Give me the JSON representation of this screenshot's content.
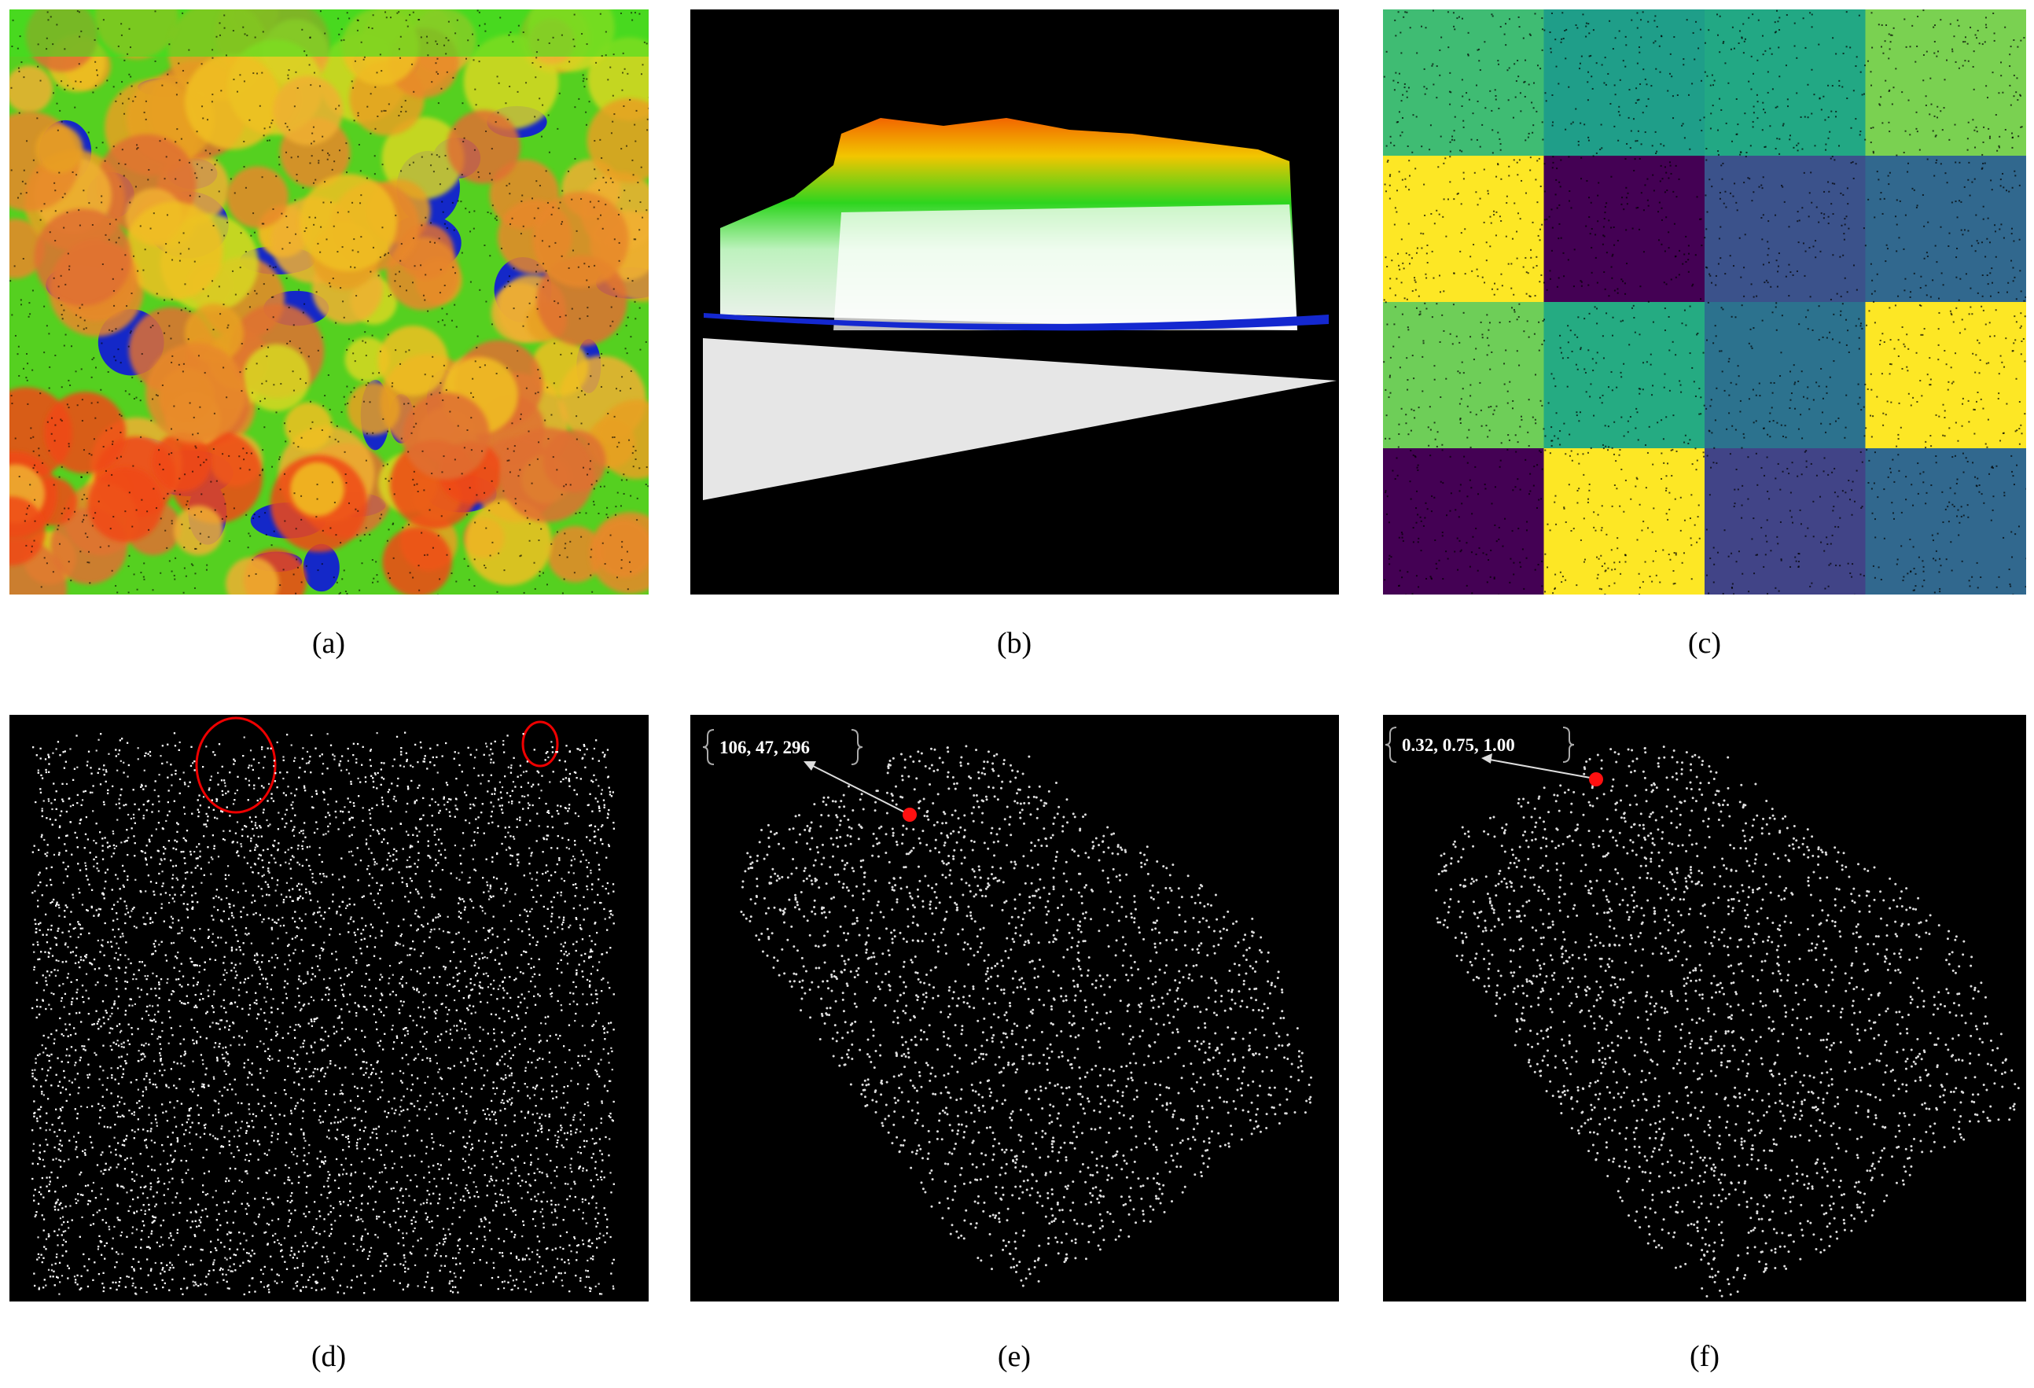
{
  "panels": [
    {
      "caption": "(a)"
    },
    {
      "caption": "(b)"
    },
    {
      "caption": "(c)"
    },
    {
      "caption": "(d)"
    },
    {
      "caption": "(e)",
      "annotation": "106, 47, 296"
    },
    {
      "caption": "(f)",
      "annotation": "0.32, 0.75, 1.00"
    }
  ]
}
